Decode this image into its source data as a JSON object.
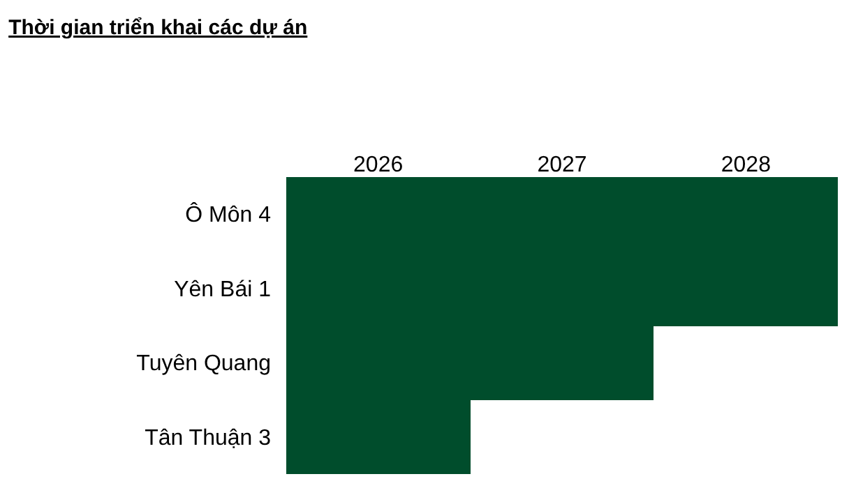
{
  "chart_data": {
    "type": "bar",
    "title": "Thời gian triển khai các dự án",
    "orientation": "horizontal",
    "categories": [
      "Ô Môn 4",
      "Yên Bái 1",
      "Tuyên Quang",
      "Tân Thuận 3"
    ],
    "values": [
      3,
      3,
      2,
      1
    ],
    "base": [
      2026,
      2026,
      2026,
      2026
    ],
    "color": "#004d2c",
    "xlim": [
      2026,
      2029
    ],
    "xticks": [
      {
        "value": 2026.5,
        "label": "2026"
      },
      {
        "value": 2027.5,
        "label": "2027"
      },
      {
        "value": 2028.5,
        "label": "2028"
      }
    ]
  }
}
